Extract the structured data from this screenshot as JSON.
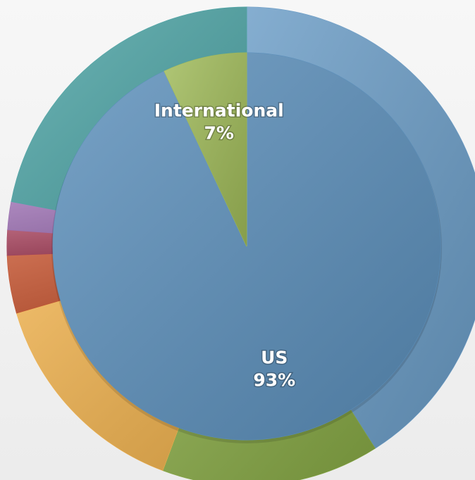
{
  "chart_data": {
    "type": "pie",
    "categories": [
      "US",
      "International"
    ],
    "values": [
      93,
      7
    ],
    "value_labels": [
      "93%",
      "7%"
    ],
    "colors": [
      "#5b8fbb",
      "#9fba58"
    ],
    "outer": {
      "categories": [
        null,
        null,
        null,
        null,
        null,
        null,
        null
      ],
      "values": [
        41,
        14.7,
        14.8,
        3.9,
        1.7,
        1.9,
        22
      ],
      "colors": [
        "#6a9cc6",
        "#86a844",
        "#f0b24e",
        "#c4532f",
        "#a3405a",
        "#9a6eb0",
        "#4ea5a6"
      ]
    }
  }
}
